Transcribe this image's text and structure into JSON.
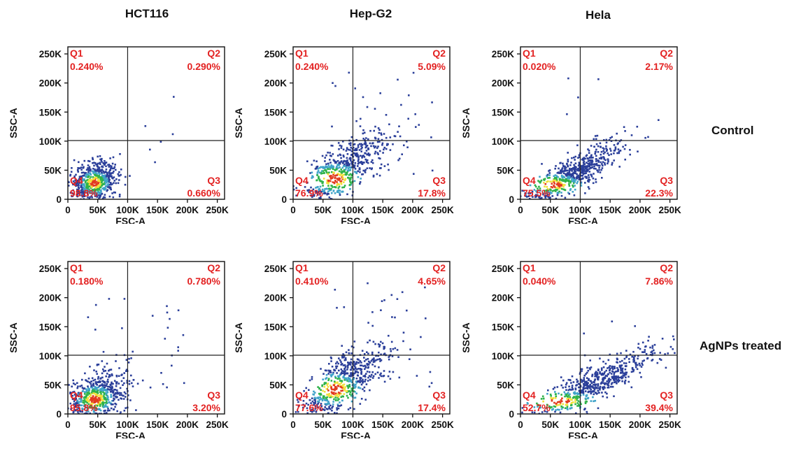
{
  "columns": [
    "HCT116",
    "Hep-G2",
    "Hela"
  ],
  "rows": [
    "Control",
    "AgNPs treated"
  ],
  "axes": {
    "xlabel": "FSC-A",
    "ylabel": "SSC-A",
    "xlim": [
      0,
      262144
    ],
    "ylim": [
      0,
      262144
    ],
    "xticks": [
      0,
      50000,
      100000,
      150000,
      200000,
      250000
    ],
    "yticks": [
      0,
      50000,
      100000,
      150000,
      200000,
      250000
    ],
    "xtick_labels": [
      "0",
      "50K",
      "100K",
      "150K",
      "200K",
      "250K"
    ],
    "ytick_labels": [
      "0",
      "50K",
      "100K",
      "150K",
      "200K",
      "250K"
    ],
    "gate_x": 100000,
    "gate_y": 101000
  },
  "colors": {
    "quadrant_text": "#e32222",
    "points_low": "#2b3f9a",
    "points_mid": "#3fa3c9",
    "points_high": "#2fb34a",
    "points_dense": "#f1e03a",
    "points_peak": "#e23b1f",
    "gate_line": "#222222"
  },
  "chart_data": [
    {
      "type": "scatter",
      "cell_line": "HCT116",
      "condition": "Control",
      "xlabel": "FSC-A",
      "ylabel": "SSC-A",
      "quadrants": [
        {
          "name": "Q1",
          "percent": "0.240%"
        },
        {
          "name": "Q2",
          "percent": "0.290%"
        },
        {
          "name": "Q3",
          "percent": "0.660%"
        },
        {
          "name": "Q4",
          "percent": "98.8%"
        }
      ],
      "population": {
        "center": [
          45000,
          30000
        ],
        "spread": [
          20000,
          18000
        ],
        "slope": 0.25,
        "tail": 0.015,
        "dense_center": [
          45000,
          28000
        ]
      }
    },
    {
      "type": "scatter",
      "cell_line": "Hep-G2",
      "condition": "Control",
      "xlabel": "FSC-A",
      "ylabel": "SSC-A",
      "quadrants": [
        {
          "name": "Q1",
          "percent": "0.240%"
        },
        {
          "name": "Q2",
          "percent": "5.09%"
        },
        {
          "name": "Q3",
          "percent": "17.8%"
        },
        {
          "name": "Q4",
          "percent": "76.9%"
        }
      ],
      "population": {
        "center": [
          85000,
          52000
        ],
        "spread": [
          38000,
          22000
        ],
        "slope": 0.65,
        "tail": 0.05,
        "dense_center": [
          70000,
          35000
        ]
      }
    },
    {
      "type": "scatter",
      "cell_line": "Hela",
      "condition": "Control",
      "xlabel": "FSC-A",
      "ylabel": "SSC-A",
      "quadrants": [
        {
          "name": "Q1",
          "percent": "0.020%"
        },
        {
          "name": "Q2",
          "percent": "2.17%"
        },
        {
          "name": "Q3",
          "percent": "22.3%"
        },
        {
          "name": "Q4",
          "percent": "75.5%"
        }
      ],
      "population": {
        "center": [
          85000,
          42000
        ],
        "spread": [
          42000,
          15000
        ],
        "slope": 0.55,
        "tail": 0.01,
        "dense_center": [
          55000,
          25000
        ]
      }
    },
    {
      "type": "scatter",
      "cell_line": "HCT116",
      "condition": "AgNPs treated",
      "xlabel": "FSC-A",
      "ylabel": "SSC-A",
      "quadrants": [
        {
          "name": "Q1",
          "percent": "0.180%"
        },
        {
          "name": "Q2",
          "percent": "0.780%"
        },
        {
          "name": "Q3",
          "percent": "3.20%"
        },
        {
          "name": "Q4",
          "percent": "95.8%"
        }
      ],
      "population": {
        "center": [
          50000,
          32000
        ],
        "spread": [
          26000,
          20000
        ],
        "slope": 0.35,
        "tail": 0.04,
        "dense_center": [
          45000,
          25000
        ]
      }
    },
    {
      "type": "scatter",
      "cell_line": "Hep-G2",
      "condition": "AgNPs treated",
      "xlabel": "FSC-A",
      "ylabel": "SSC-A",
      "quadrants": [
        {
          "name": "Q1",
          "percent": "0.410%"
        },
        {
          "name": "Q2",
          "percent": "4.65%"
        },
        {
          "name": "Q3",
          "percent": "17.4%"
        },
        {
          "name": "Q4",
          "percent": "77.6%"
        }
      ],
      "population": {
        "center": [
          85000,
          55000
        ],
        "spread": [
          38000,
          24000
        ],
        "slope": 0.6,
        "tail": 0.05,
        "dense_center": [
          70000,
          42000
        ]
      }
    },
    {
      "type": "scatter",
      "cell_line": "Hela",
      "condition": "AgNPs treated",
      "xlabel": "FSC-A",
      "ylabel": "SSC-A",
      "quadrants": [
        {
          "name": "Q1",
          "percent": "0.040%"
        },
        {
          "name": "Q2",
          "percent": "7.86%"
        },
        {
          "name": "Q3",
          "percent": "39.4%"
        },
        {
          "name": "Q4",
          "percent": "52.7%"
        }
      ],
      "population": {
        "center": [
          120000,
          50000
        ],
        "spread": [
          55000,
          15000
        ],
        "slope": 0.5,
        "tail": 0.01,
        "dense_center": [
          65000,
          22000
        ]
      }
    }
  ]
}
